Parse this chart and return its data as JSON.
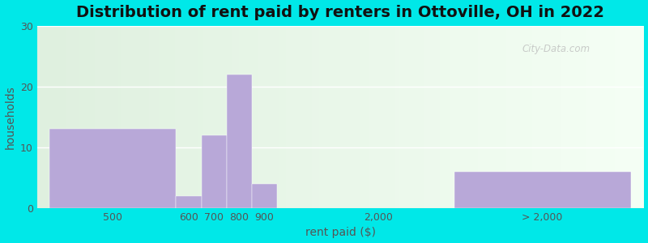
{
  "title": "Distribution of rent paid by renters in Ottoville, OH in 2022",
  "xlabel": "rent paid ($)",
  "ylabel": "households",
  "categories": [
    "500",
    "600",
    "700",
    "800",
    "900",
    "2,000",
    "> 2,000"
  ],
  "values": [
    13,
    2,
    12,
    22,
    4,
    0,
    6
  ],
  "bar_color": "#b8a8d8",
  "ylim": [
    0,
    30
  ],
  "yticks": [
    0,
    10,
    20,
    30
  ],
  "background_outer": "#00e8e8",
  "grad_left": "#dff0df",
  "grad_right": "#f5fff5",
  "title_fontsize": 14,
  "axis_label_fontsize": 10,
  "tick_fontsize": 9,
  "watermark": "City-Data.com",
  "x_positions": [
    2.5,
    5.5,
    6.5,
    7.5,
    8.5,
    13.0,
    19.5
  ],
  "bar_widths": [
    5.0,
    1.0,
    1.0,
    1.0,
    1.0,
    1.0,
    7.0
  ],
  "xlim": [
    -0.5,
    23.5
  ]
}
